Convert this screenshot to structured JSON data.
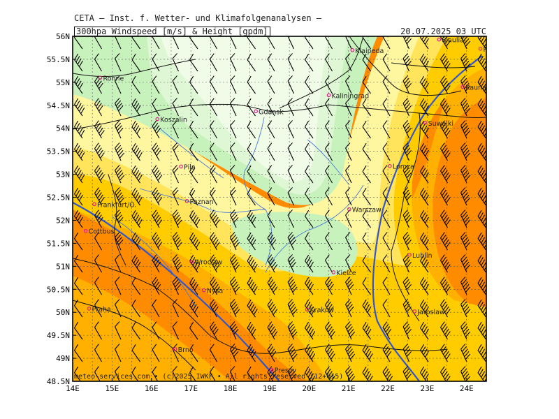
{
  "header": {
    "title": "CETA — Inst. f. Wetter- und Klimafolgenanalysen —",
    "subtitle": "300hpa Windspeed [m/s] & Height [gpdm]",
    "timestamp": "20.07.2025 03 UTC"
  },
  "footer": {
    "credit": "meteo-services.com • (c)2025 IWKF • All rights reserved (12+015)"
  },
  "map": {
    "lon_range": [
      14,
      24.5
    ],
    "lat_range": [
      48.5,
      56
    ],
    "lon_ticks": [
      "14E",
      "15E",
      "16E",
      "17E",
      "18E",
      "19E",
      "20E",
      "21E",
      "22E",
      "23E",
      "24E"
    ],
    "lat_ticks": [
      "48.5N",
      "49N",
      "49.5N",
      "50N",
      "50.5N",
      "51N",
      "51.5N",
      "52N",
      "52.5N",
      "53N",
      "53.5N",
      "54N",
      "54.5N",
      "55N",
      "55.5N",
      "56N"
    ],
    "colors": {
      "palest": "#f0fce8",
      "pale_green": "#dff7d4",
      "green": "#c8f2bc",
      "light_yellow": "#fff6a0",
      "yellow": "#ffe45c",
      "gold": "#ffcc00",
      "orange": "#ffb000",
      "dark_orange": "#ff8c00",
      "contour": "#3355cc",
      "borders": "#111111",
      "rivers": "#4a78d8",
      "city_marker": "#e0208a"
    },
    "cities": [
      {
        "name": "Siauliai",
        "lon": 23.3,
        "lat": 55.93
      },
      {
        "name": "Panevezys",
        "lon": 24.35,
        "lat": 55.73
      },
      {
        "name": "Klaipeda",
        "lon": 21.1,
        "lat": 55.7
      },
      {
        "name": "Ronne",
        "lon": 14.7,
        "lat": 55.1
      },
      {
        "name": "Kaunas",
        "lon": 23.9,
        "lat": 54.9
      },
      {
        "name": "Kaliningrad",
        "lon": 20.5,
        "lat": 54.72
      },
      {
        "name": "Gdansk",
        "lon": 18.65,
        "lat": 54.37
      },
      {
        "name": "Koszalin",
        "lon": 16.15,
        "lat": 54.2
      },
      {
        "name": "Suwalki",
        "lon": 22.95,
        "lat": 54.12
      },
      {
        "name": "Pila",
        "lon": 16.75,
        "lat": 53.17
      },
      {
        "name": "Lomza",
        "lon": 22.05,
        "lat": 53.18
      },
      {
        "name": "Poznan",
        "lon": 16.9,
        "lat": 52.42
      },
      {
        "name": "Frankfurt/O.",
        "lon": 14.55,
        "lat": 52.35
      },
      {
        "name": "Warszaw",
        "lon": 21.02,
        "lat": 52.24
      },
      {
        "name": "Cottbus",
        "lon": 14.33,
        "lat": 51.77
      },
      {
        "name": "Lublin",
        "lon": 22.55,
        "lat": 51.25
      },
      {
        "name": "Wroclaw",
        "lon": 17.02,
        "lat": 51.1
      },
      {
        "name": "Kielce",
        "lon": 20.62,
        "lat": 50.87
      },
      {
        "name": "Nysa",
        "lon": 17.33,
        "lat": 50.48
      },
      {
        "name": "Praha",
        "lon": 14.42,
        "lat": 50.08
      },
      {
        "name": "Krakow",
        "lon": 19.95,
        "lat": 50.06
      },
      {
        "name": "Jaroslaw",
        "lon": 22.68,
        "lat": 50.02
      },
      {
        "name": "Brno",
        "lon": 16.6,
        "lat": 49.2
      },
      {
        "name": "Presov",
        "lon": 19.05,
        "lat": 48.75
      }
    ]
  }
}
